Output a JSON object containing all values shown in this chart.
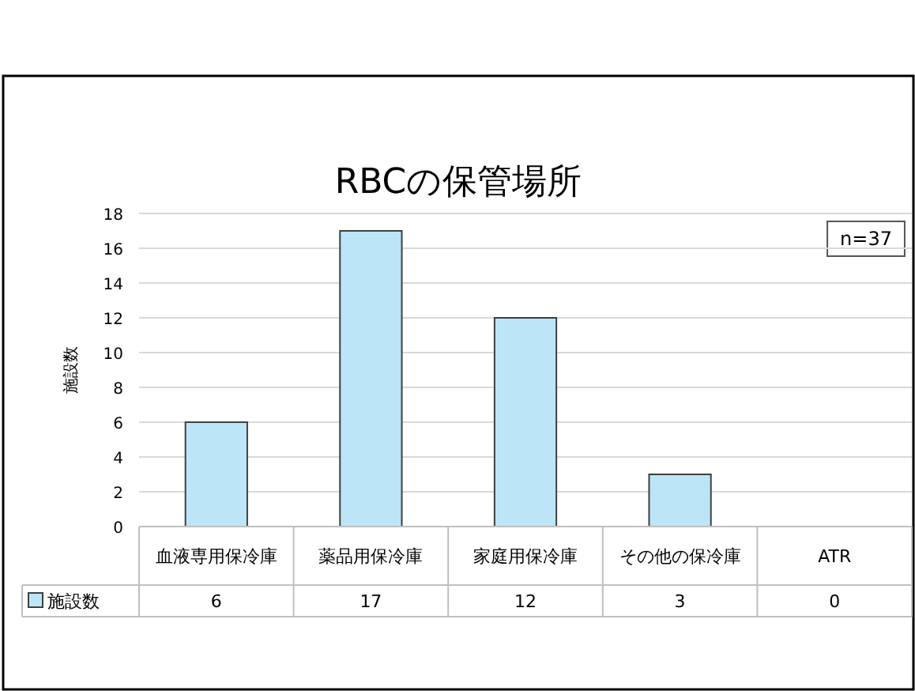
{
  "chart_data": {
    "type": "bar",
    "title": "RBCの保管場所",
    "ylabel": "施設数",
    "annotations": [
      "n=37"
    ],
    "categories": [
      "血液専用保冷庫",
      "薬品用保冷庫",
      "家庭用保冷庫",
      "その他の保冷庫",
      "ATR"
    ],
    "series": [
      {
        "name": "施設数",
        "color": "#bde5f8",
        "values": [
          6,
          17,
          12,
          3,
          0
        ]
      }
    ],
    "ylim": [
      0,
      18
    ],
    "yticks": [
      0,
      2,
      4,
      6,
      8,
      10,
      12,
      14,
      16,
      18
    ],
    "grid": "y",
    "legend": "bottom",
    "data_labels": true
  }
}
